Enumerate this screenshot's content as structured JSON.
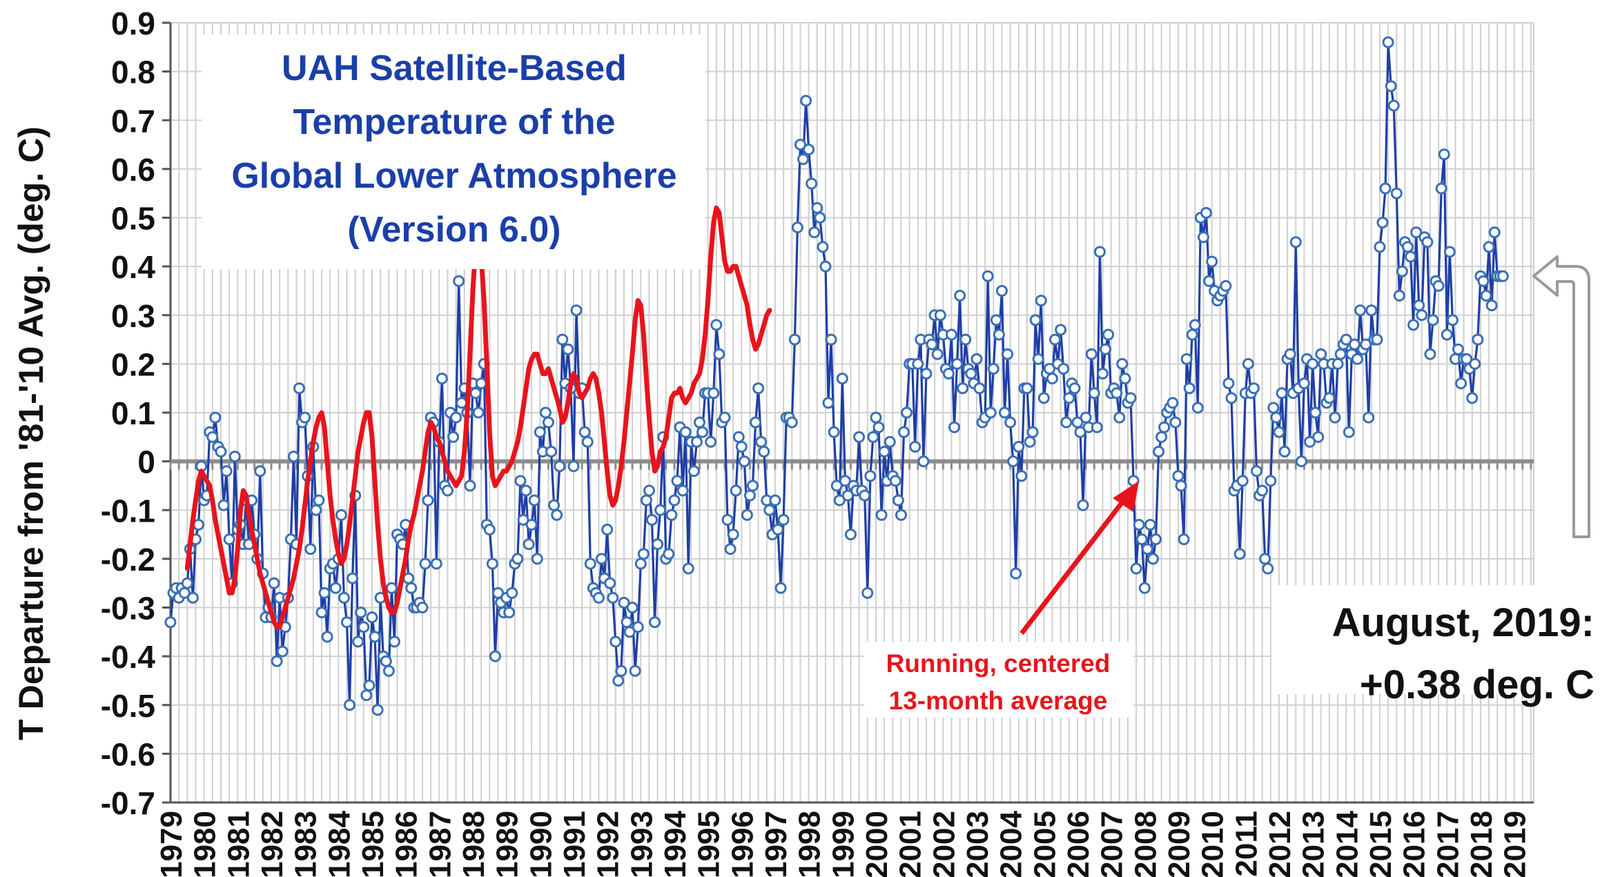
{
  "chart_data": {
    "type": "line",
    "title_lines": [
      "UAH Satellite-Based",
      "Temperature of the",
      "Global Lower Atmosphere",
      "(Version 6.0)"
    ],
    "ylabel": "T Departure from '81-'10 Avg. (deg. C)",
    "xlabel": "",
    "ylim": [
      -0.7,
      0.9
    ],
    "yticks": [
      0.9,
      0.8,
      0.7,
      0.6,
      0.5,
      0.4,
      0.3,
      0.2,
      0.1,
      0,
      -0.1,
      -0.2,
      -0.3,
      -0.4,
      -0.5,
      -0.6,
      -0.7
    ],
    "x_start": "1979-01",
    "x_end": "2019-08",
    "year_ticks": [
      "1979",
      "1980",
      "1981",
      "1982",
      "1983",
      "1984",
      "1985",
      "1986",
      "1987",
      "1988",
      "1989",
      "1990",
      "1991",
      "1992",
      "1993",
      "1994",
      "1995",
      "1996",
      "1997",
      "1998",
      "1999",
      "2000",
      "2001",
      "2002",
      "2003",
      "2004",
      "2005",
      "2006",
      "2007",
      "2008",
      "2009",
      "2010",
      "2011",
      "2012",
      "2013",
      "2014",
      "2015",
      "2016",
      "2017",
      "2018",
      "2019"
    ],
    "grid": true,
    "colors": {
      "monthly": "#1f3fa6",
      "marker_fill": "#ffffff",
      "marker_stroke": "#3a6fb5",
      "running": "#e8141c",
      "zero_line": "#8c8c8c",
      "grid": "#cfcfcf",
      "title": "#1a3fa8",
      "arrow_outline": "#9a9a9a"
    },
    "series": [
      {
        "name": "monthly",
        "values": [
          -0.33,
          -0.27,
          -0.26,
          -0.28,
          -0.26,
          -0.27,
          -0.25,
          -0.18,
          -0.28,
          -0.16,
          -0.13,
          -0.01,
          -0.08,
          -0.07,
          0.06,
          0.05,
          0.09,
          0.03,
          0.02,
          -0.09,
          -0.02,
          -0.16,
          -0.25,
          0.01,
          -0.14,
          -0.13,
          -0.17,
          -0.08,
          -0.17,
          -0.08,
          -0.15,
          -0.2,
          -0.02,
          -0.23,
          -0.32,
          -0.3,
          -0.32,
          -0.25,
          -0.41,
          -0.28,
          -0.39,
          -0.34,
          -0.28,
          -0.16,
          0.01,
          -0.17,
          0.15,
          0.08,
          0.09,
          -0.03,
          -0.18,
          0.03,
          -0.1,
          -0.08,
          -0.31,
          -0.27,
          -0.36,
          -0.22,
          -0.21,
          -0.26,
          -0.2,
          -0.11,
          -0.28,
          -0.33,
          -0.5,
          -0.24,
          -0.07,
          -0.37,
          -0.31,
          -0.34,
          -0.48,
          -0.46,
          -0.32,
          -0.36,
          -0.51,
          -0.28,
          -0.4,
          -0.41,
          -0.43,
          -0.26,
          -0.37,
          -0.15,
          -0.16,
          -0.17,
          -0.13,
          -0.24,
          -0.26,
          -0.3,
          -0.3,
          -0.29,
          -0.3,
          -0.21,
          -0.08,
          0.09,
          0.08,
          -0.21,
          0.04,
          0.17,
          -0.05,
          -0.06,
          0.1,
          0.05,
          0.09,
          0.37,
          0.12,
          0.15,
          0.1,
          -0.05,
          0.16,
          0.14,
          0.1,
          0.16,
          0.2,
          -0.13,
          -0.14,
          -0.21,
          -0.4,
          -0.27,
          -0.29,
          -0.31,
          -0.28,
          -0.31,
          -0.27,
          -0.21,
          -0.2,
          -0.04,
          -0.12,
          -0.06,
          -0.17,
          -0.13,
          -0.08,
          -0.2,
          0.06,
          0.02,
          0.1,
          0.08,
          0.02,
          -0.09,
          -0.11,
          -0.01,
          0.25,
          0.16,
          0.23,
          0.15,
          -0.01,
          0.31,
          0.14,
          0.15,
          0.06,
          0.04,
          -0.21,
          -0.26,
          -0.27,
          -0.28,
          -0.2,
          -0.24,
          -0.14,
          -0.25,
          -0.28,
          -0.37,
          -0.45,
          -0.43,
          -0.29,
          -0.33,
          -0.35,
          -0.3,
          -0.43,
          -0.34,
          -0.21,
          -0.19,
          -0.08,
          -0.06,
          -0.12,
          -0.33,
          -0.17,
          -0.1,
          0.05,
          -0.2,
          -0.19,
          -0.11,
          -0.08,
          -0.04,
          0.07,
          -0.06,
          0.06,
          -0.22,
          0.04,
          -0.02,
          0.04,
          0.08,
          0.06,
          0.14,
          0.14,
          0.04,
          0.14,
          0.28,
          0.22,
          0.08,
          0.09,
          -0.12,
          -0.18,
          -0.15,
          -0.06,
          0.05,
          0.03,
          0.0,
          -0.11,
          -0.07,
          -0.05,
          0.08,
          0.15,
          0.04,
          0.02,
          -0.08,
          -0.1,
          -0.15,
          -0.08,
          -0.14,
          -0.26,
          -0.12,
          0.09,
          0.09,
          0.08,
          0.25,
          0.48,
          0.65,
          0.62,
          0.74,
          0.64,
          0.57,
          0.47,
          0.52,
          0.5,
          0.44,
          0.4,
          0.12,
          0.25,
          0.06,
          -0.05,
          -0.08,
          0.17,
          -0.04,
          -0.07,
          -0.15,
          -0.05,
          -0.06,
          0.05,
          -0.06,
          -0.07,
          -0.27,
          -0.03,
          0.05,
          0.09,
          0.07,
          -0.11,
          0.02,
          -0.04,
          0.04,
          -0.03,
          -0.04,
          -0.08,
          -0.11,
          0.06,
          0.1,
          0.2,
          0.2,
          0.03,
          0.2,
          0.25,
          0.0,
          0.18,
          0.25,
          0.24,
          0.3,
          0.22,
          0.3,
          0.26,
          0.19,
          0.18,
          0.26,
          0.07,
          0.2,
          0.34,
          0.15,
          0.25,
          0.19,
          0.18,
          0.16,
          0.21,
          0.15,
          0.08,
          0.09,
          0.38,
          0.1,
          0.19,
          0.29,
          0.26,
          0.35,
          0.1,
          0.22,
          0.08,
          0.0,
          -0.23,
          0.03,
          -0.03,
          0.15,
          0.15,
          0.04,
          0.06,
          0.29,
          0.21,
          0.33,
          0.13,
          0.18,
          0.19,
          0.17,
          0.25,
          0.2,
          0.27,
          0.19,
          0.08,
          0.13,
          0.16,
          0.15,
          0.08,
          0.06,
          -0.09,
          0.09,
          0.07,
          0.22,
          0.14,
          0.07,
          0.43,
          0.18,
          0.23,
          0.26,
          0.14,
          0.15,
          0.14,
          0.09,
          0.2,
          0.17,
          0.12,
          0.13,
          -0.04,
          -0.22,
          -0.13,
          -0.16,
          -0.26,
          -0.18,
          -0.13,
          -0.2,
          -0.16,
          0.02,
          0.05,
          0.07,
          0.1,
          0.11,
          0.12,
          0.08,
          -0.03,
          -0.05,
          -0.16,
          0.21,
          0.15,
          0.26,
          0.28,
          0.11,
          0.5,
          0.46,
          0.51,
          0.37,
          0.41,
          0.35,
          0.33,
          0.34,
          0.35,
          0.36,
          0.16,
          0.13,
          -0.06,
          -0.05,
          -0.19,
          -0.04,
          0.14,
          0.2,
          0.14,
          0.15,
          -0.02,
          -0.07,
          -0.06,
          -0.2,
          -0.22,
          -0.04,
          0.11,
          0.09,
          0.06,
          0.14,
          0.02,
          0.21,
          0.22,
          0.14,
          0.45,
          0.15,
          0.0,
          0.16,
          0.21,
          0.04,
          0.2,
          0.1,
          0.05,
          0.22,
          0.2,
          0.12,
          0.13,
          0.2,
          0.09,
          0.2,
          0.22,
          0.24,
          0.25,
          0.06,
          0.22,
          0.24,
          0.21,
          0.31,
          0.23,
          0.24,
          0.09,
          0.31,
          0.25,
          0.25,
          0.44,
          0.49,
          0.56,
          0.86,
          0.77,
          0.73,
          0.55,
          0.34,
          0.39,
          0.45,
          0.44,
          0.42,
          0.28,
          0.47,
          0.32,
          0.3,
          0.46,
          0.45,
          0.22,
          0.29,
          0.37,
          0.36,
          0.56,
          0.63,
          0.26,
          0.43,
          0.29,
          0.21,
          0.23,
          0.16,
          0.21,
          0.21,
          0.19,
          0.13,
          0.2,
          0.25,
          0.38,
          0.37,
          0.34,
          0.44,
          0.32,
          0.47,
          0.38,
          0.38,
          0.38
        ]
      },
      {
        "name": "Running, centered 13-month average",
        "start_offset": 6,
        "values": [
          -0.22,
          -0.17,
          -0.12,
          -0.08,
          -0.04,
          -0.02,
          -0.03,
          -0.04,
          -0.05,
          -0.08,
          -0.12,
          -0.15,
          -0.18,
          -0.21,
          -0.24,
          -0.27,
          -0.27,
          -0.24,
          -0.18,
          -0.1,
          -0.06,
          -0.07,
          -0.11,
          -0.14,
          -0.17,
          -0.2,
          -0.23,
          -0.25,
          -0.27,
          -0.29,
          -0.31,
          -0.33,
          -0.34,
          -0.34,
          -0.32,
          -0.3,
          -0.28,
          -0.26,
          -0.24,
          -0.21,
          -0.18,
          -0.14,
          -0.09,
          -0.04,
          0.0,
          0.04,
          0.07,
          0.09,
          0.1,
          0.07,
          0.0,
          -0.07,
          -0.12,
          -0.16,
          -0.19,
          -0.21,
          -0.2,
          -0.17,
          -0.13,
          -0.08,
          -0.03,
          0.02,
          0.05,
          0.08,
          0.1,
          0.1,
          0.05,
          -0.04,
          -0.13,
          -0.2,
          -0.25,
          -0.28,
          -0.3,
          -0.31,
          -0.31,
          -0.29,
          -0.26,
          -0.23,
          -0.2,
          -0.16,
          -0.13,
          -0.11,
          -0.08,
          -0.05,
          -0.02,
          0.02,
          0.06,
          0.08,
          0.07,
          0.05,
          0.04,
          0.02,
          0.0,
          -0.02,
          -0.03,
          -0.04,
          -0.05,
          -0.04,
          -0.03,
          0.02,
          0.1,
          0.22,
          0.35,
          0.44,
          0.46,
          0.42,
          0.33,
          0.2,
          0.06,
          -0.03,
          -0.05,
          -0.04,
          -0.03,
          -0.02,
          -0.02,
          -0.01,
          0.0,
          0.02,
          0.04,
          0.07,
          0.11,
          0.15,
          0.19,
          0.21,
          0.22,
          0.22,
          0.2,
          0.18,
          0.18,
          0.19,
          0.17,
          0.15,
          0.13,
          0.11,
          0.08,
          0.09,
          0.12,
          0.16,
          0.18,
          0.17,
          0.14,
          0.13,
          0.14,
          0.15,
          0.17,
          0.18,
          0.17,
          0.14,
          0.1,
          0.04,
          -0.02,
          -0.07,
          -0.09,
          -0.08,
          -0.05,
          -0.01,
          0.04,
          0.1,
          0.16,
          0.22,
          0.29,
          0.33,
          0.32,
          0.26,
          0.17,
          0.09,
          0.02,
          -0.02,
          -0.01,
          0.02,
          0.03,
          0.05,
          0.09,
          0.13,
          0.14,
          0.14,
          0.15,
          0.13,
          0.12,
          0.13,
          0.14,
          0.16,
          0.17,
          0.18,
          0.21,
          0.26,
          0.33,
          0.42,
          0.49,
          0.52,
          0.51,
          0.46,
          0.41,
          0.39,
          0.39,
          0.4,
          0.4,
          0.38,
          0.36,
          0.34,
          0.32,
          0.28,
          0.25,
          0.23,
          0.24,
          0.26,
          0.28,
          0.3,
          0.31
        ]
      }
    ],
    "annotations": [
      {
        "id": "running-label",
        "lines": [
          "Running, centered",
          "13-month average"
        ],
        "color": "#e8141c"
      },
      {
        "id": "latest-label",
        "lines": [
          "August, 2019:",
          "+0.38 deg. C"
        ],
        "color": "#111111"
      }
    ]
  }
}
